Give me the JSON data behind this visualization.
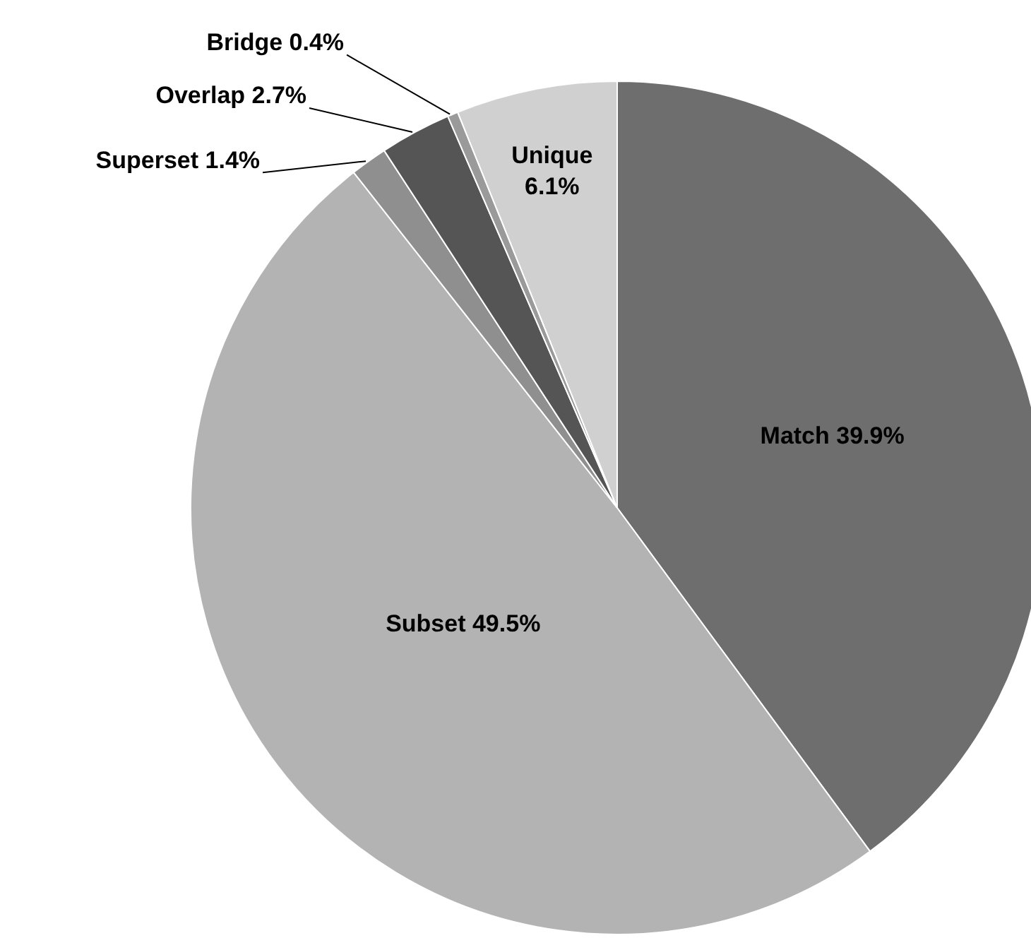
{
  "chart_data": {
    "type": "pie",
    "categories": [
      "Match",
      "Subset",
      "Superset",
      "Overlap",
      "Bridge",
      "Unique"
    ],
    "values": [
      39.9,
      49.5,
      1.4,
      2.7,
      0.4,
      6.1
    ],
    "value_labels": [
      "39.9%",
      "49.5%",
      "1.4%",
      "2.7%",
      "0.4%",
      "6.1%"
    ],
    "colors": [
      "#6e6e6e",
      "#b3b3b3",
      "#8f8f8f",
      "#555555",
      "#9a9a9a",
      "#d0d0d0"
    ],
    "legend": false
  }
}
